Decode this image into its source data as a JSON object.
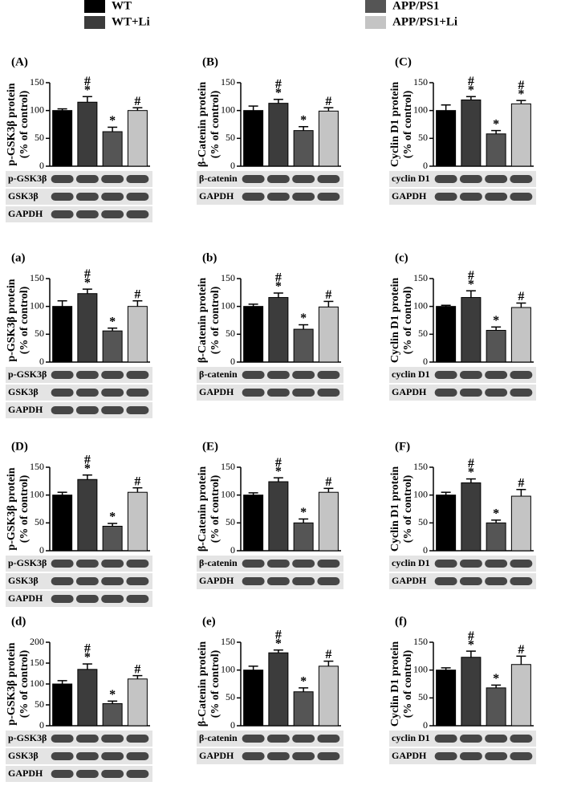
{
  "legend": [
    {
      "name": "WT",
      "color": "#000000"
    },
    {
      "name": "WT+Li",
      "color": "#3c3c3c"
    },
    {
      "name": "APP/PS1",
      "color": "#555555"
    },
    {
      "name": "APP/PS1+Li",
      "color": "#c4c4c4"
    }
  ],
  "chart_data": [
    {
      "type": "bar",
      "panel": "(A)",
      "ylabel": [
        "p-GSK3β protein",
        "(% of control)"
      ],
      "values": [
        100,
        115,
        62,
        100
      ],
      "errors": [
        3,
        10,
        8,
        5
      ],
      "annotations": [
        [],
        [
          "#",
          "*"
        ],
        [
          "*"
        ],
        [
          "#"
        ]
      ],
      "ylim": [
        0,
        150
      ],
      "yticks": [
        0,
        50,
        100,
        150
      ],
      "blots": [
        "p-GSK3β",
        "GSK3β",
        "GAPDH"
      ]
    },
    {
      "type": "bar",
      "panel": "(B)",
      "ylabel": [
        "β-Catenin protein",
        "(% of control)"
      ],
      "values": [
        100,
        113,
        64,
        99
      ],
      "errors": [
        8,
        7,
        7,
        6
      ],
      "annotations": [
        [],
        [
          "#",
          "*"
        ],
        [
          "*"
        ],
        [
          "#"
        ]
      ],
      "ylim": [
        0,
        150
      ],
      "yticks": [
        0,
        50,
        100,
        150
      ],
      "blots": [
        "β-catenin",
        "GAPDH"
      ]
    },
    {
      "type": "bar",
      "panel": "(C)",
      "ylabel": [
        "Cyclin D1 protein",
        "(% of control)"
      ],
      "values": [
        100,
        119,
        58,
        112
      ],
      "errors": [
        10,
        6,
        6,
        6
      ],
      "annotations": [
        [],
        [
          "#",
          "*"
        ],
        [
          "*"
        ],
        [
          "#",
          "*"
        ]
      ],
      "ylim": [
        0,
        150
      ],
      "yticks": [
        0,
        50,
        100,
        150
      ],
      "blots": [
        "cyclin D1",
        "GAPDH"
      ]
    },
    {
      "type": "bar",
      "panel": "(a)",
      "ylabel": [
        "p-GSK3β protein",
        "(% of control)"
      ],
      "values": [
        100,
        123,
        56,
        100
      ],
      "errors": [
        10,
        8,
        5,
        10
      ],
      "annotations": [
        [],
        [
          "#",
          "*"
        ],
        [
          "*"
        ],
        [
          "#"
        ]
      ],
      "ylim": [
        0,
        150
      ],
      "yticks": [
        0,
        50,
        100,
        150
      ],
      "blots": [
        "p-GSK3β",
        "GSK3β",
        "GAPDH"
      ]
    },
    {
      "type": "bar",
      "panel": "(b)",
      "ylabel": [
        "β-Catenin protein",
        "(% of control)"
      ],
      "values": [
        100,
        116,
        59,
        99
      ],
      "errors": [
        4,
        8,
        8,
        10
      ],
      "annotations": [
        [],
        [
          "#",
          "*"
        ],
        [
          "*"
        ],
        [
          "#"
        ]
      ],
      "ylim": [
        0,
        150
      ],
      "yticks": [
        0,
        50,
        100,
        150
      ],
      "blots": [
        "β-catenin",
        "GAPDH"
      ]
    },
    {
      "type": "bar",
      "panel": "(c)",
      "ylabel": [
        "Cyclin D1 protein",
        "(% of control)"
      ],
      "values": [
        100,
        116,
        57,
        98
      ],
      "errors": [
        2,
        12,
        6,
        8
      ],
      "annotations": [
        [],
        [
          "#",
          "*"
        ],
        [
          "*"
        ],
        [
          "#"
        ]
      ],
      "ylim": [
        0,
        150
      ],
      "yticks": [
        0,
        50,
        100,
        150
      ],
      "blots": [
        "cyclin D1",
        "GAPDH"
      ]
    },
    {
      "type": "bar",
      "panel": "(D)",
      "ylabel": [
        "p-GSK3β protein",
        "(% of control)"
      ],
      "values": [
        100,
        128,
        44,
        105
      ],
      "errors": [
        5,
        8,
        5,
        8
      ],
      "annotations": [
        [],
        [
          "#",
          "*"
        ],
        [
          "*"
        ],
        [
          "#"
        ]
      ],
      "ylim": [
        0,
        150
      ],
      "yticks": [
        0,
        50,
        100,
        150
      ],
      "blots": [
        "p-GSK3β",
        "GSK3β",
        "GAPDH"
      ]
    },
    {
      "type": "bar",
      "panel": "(E)",
      "ylabel": [
        "β-Catenin protein",
        "(% of control)"
      ],
      "values": [
        100,
        124,
        50,
        105
      ],
      "errors": [
        4,
        7,
        7,
        7
      ],
      "annotations": [
        [],
        [
          "#",
          "*"
        ],
        [
          "*"
        ],
        [
          "#"
        ]
      ],
      "ylim": [
        0,
        150
      ],
      "yticks": [
        0,
        50,
        100,
        150
      ],
      "blots": [
        "β-catenin",
        "GAPDH"
      ]
    },
    {
      "type": "bar",
      "panel": "(F)",
      "ylabel": [
        "Cyclin D1 protein",
        "(% of control)"
      ],
      "values": [
        100,
        122,
        50,
        98
      ],
      "errors": [
        5,
        7,
        5,
        12
      ],
      "annotations": [
        [],
        [
          "#",
          "*"
        ],
        [
          "*"
        ],
        [
          "#"
        ]
      ],
      "ylim": [
        0,
        150
      ],
      "yticks": [
        0,
        50,
        100,
        150
      ],
      "blots": [
        "cyclin D1",
        "GAPDH"
      ]
    },
    {
      "type": "bar",
      "panel": "(d)",
      "ylabel": [
        "p-GSK3β protein",
        "(% of control)"
      ],
      "values": [
        100,
        135,
        53,
        112
      ],
      "errors": [
        8,
        13,
        6,
        8
      ],
      "annotations": [
        [],
        [
          "#",
          "*"
        ],
        [
          "*"
        ],
        [
          "#"
        ]
      ],
      "ylim": [
        0,
        200
      ],
      "yticks": [
        0,
        50,
        100,
        150,
        200
      ],
      "blots": [
        "p-GSK3β",
        "GSK3β",
        "GAPDH"
      ]
    },
    {
      "type": "bar",
      "panel": "(e)",
      "ylabel": [
        "β-Catenin protein",
        "(% of control)"
      ],
      "values": [
        100,
        131,
        61,
        107
      ],
      "errors": [
        7,
        5,
        7,
        9
      ],
      "annotations": [
        [],
        [
          "#",
          "*"
        ],
        [
          "*"
        ],
        [
          "#"
        ]
      ],
      "ylim": [
        0,
        150
      ],
      "yticks": [
        0,
        50,
        100,
        150
      ],
      "blots": [
        "β-catenin",
        "GAPDH"
      ]
    },
    {
      "type": "bar",
      "panel": "(f)",
      "ylabel": [
        "Cyclin D1 protein",
        "(% of control)"
      ],
      "values": [
        100,
        123,
        68,
        110
      ],
      "errors": [
        4,
        11,
        5,
        15
      ],
      "annotations": [
        [],
        [
          "#",
          "*"
        ],
        [
          "*"
        ],
        [
          "#"
        ]
      ],
      "ylim": [
        0,
        150
      ],
      "yticks": [
        0,
        50,
        100,
        150
      ],
      "blots": [
        "cyclin D1",
        "GAPDH"
      ]
    }
  ]
}
